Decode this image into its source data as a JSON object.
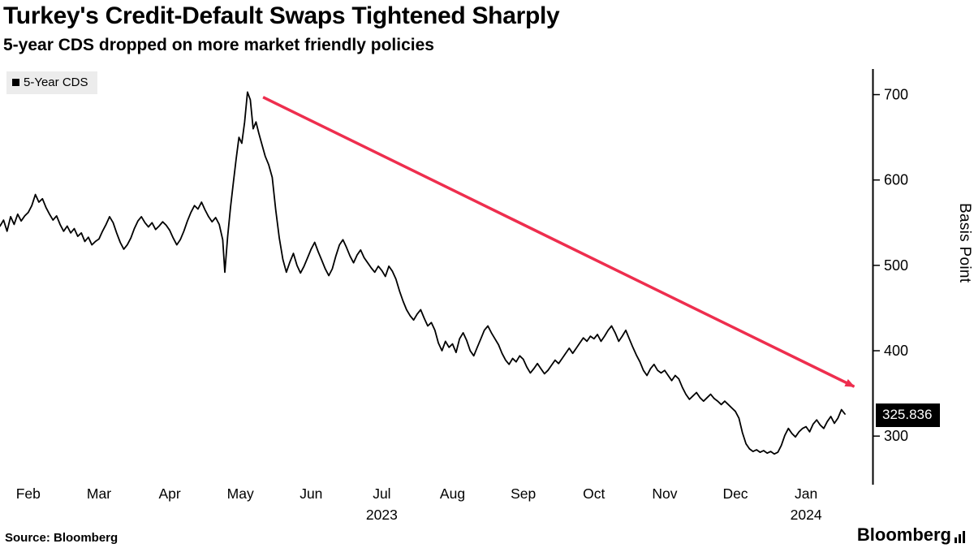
{
  "header": {
    "title": "Turkey's Credit-Default Swaps Tightened Sharply",
    "subtitle": "5-year CDS dropped on more market friendly policies"
  },
  "legend": {
    "label": "5-Year CDS",
    "marker_color": "#000000"
  },
  "chart_data": {
    "type": "line",
    "title": "Turkey's Credit-Default Swaps Tightened Sharply",
    "subtitle": "5-year CDS dropped on more market friendly policies",
    "ylabel": "Basis Point",
    "unit": "basis points",
    "x_unit": "months, 0 = Feb 2023",
    "xlim": [
      -0.4,
      11.94
    ],
    "ylim": [
      245,
      730
    ],
    "grid": false,
    "legend_position": "top-left",
    "y_ticks": [
      300,
      400,
      500,
      600,
      700
    ],
    "x_ticks": [
      {
        "pos": 0,
        "label": "Feb"
      },
      {
        "pos": 1,
        "label": "Mar"
      },
      {
        "pos": 2,
        "label": "Apr"
      },
      {
        "pos": 3,
        "label": "May"
      },
      {
        "pos": 4,
        "label": "Jun"
      },
      {
        "pos": 5,
        "label": "Jul",
        "year": "2023"
      },
      {
        "pos": 6,
        "label": "Aug"
      },
      {
        "pos": 7,
        "label": "Sep"
      },
      {
        "pos": 8,
        "label": "Oct"
      },
      {
        "pos": 9,
        "label": "Nov"
      },
      {
        "pos": 10,
        "label": "Dec"
      },
      {
        "pos": 11,
        "label": "Jan",
        "year": "2024"
      }
    ],
    "last_value": 325.836,
    "last_value_label": "325.836",
    "annotation_arrow": {
      "color": "#ee2e4e",
      "from": [
        3.32,
        697
      ],
      "to": [
        11.68,
        358
      ]
    },
    "series": [
      {
        "name": "5-Year CDS",
        "color": "#000000",
        "points": [
          [
            -0.4,
            546
          ],
          [
            -0.35,
            553
          ],
          [
            -0.3,
            540
          ],
          [
            -0.25,
            557
          ],
          [
            -0.2,
            548
          ],
          [
            -0.15,
            560
          ],
          [
            -0.1,
            552
          ],
          [
            -0.05,
            558
          ],
          [
            0.0,
            562
          ],
          [
            0.05,
            570
          ],
          [
            0.1,
            583
          ],
          [
            0.15,
            574
          ],
          [
            0.2,
            578
          ],
          [
            0.25,
            568
          ],
          [
            0.3,
            560
          ],
          [
            0.35,
            553
          ],
          [
            0.4,
            558
          ],
          [
            0.45,
            548
          ],
          [
            0.5,
            540
          ],
          [
            0.55,
            546
          ],
          [
            0.6,
            538
          ],
          [
            0.65,
            543
          ],
          [
            0.7,
            534
          ],
          [
            0.75,
            538
          ],
          [
            0.8,
            528
          ],
          [
            0.85,
            533
          ],
          [
            0.9,
            524
          ],
          [
            0.95,
            528
          ],
          [
            1.0,
            531
          ],
          [
            1.05,
            540
          ],
          [
            1.1,
            548
          ],
          [
            1.15,
            557
          ],
          [
            1.2,
            550
          ],
          [
            1.25,
            538
          ],
          [
            1.3,
            527
          ],
          [
            1.35,
            519
          ],
          [
            1.4,
            524
          ],
          [
            1.45,
            532
          ],
          [
            1.5,
            543
          ],
          [
            1.55,
            552
          ],
          [
            1.6,
            557
          ],
          [
            1.65,
            550
          ],
          [
            1.7,
            545
          ],
          [
            1.75,
            550
          ],
          [
            1.8,
            542
          ],
          [
            1.85,
            546
          ],
          [
            1.9,
            551
          ],
          [
            1.95,
            547
          ],
          [
            2.0,
            541
          ],
          [
            2.05,
            532
          ],
          [
            2.1,
            524
          ],
          [
            2.15,
            530
          ],
          [
            2.2,
            540
          ],
          [
            2.25,
            552
          ],
          [
            2.3,
            562
          ],
          [
            2.35,
            570
          ],
          [
            2.4,
            566
          ],
          [
            2.45,
            574
          ],
          [
            2.5,
            565
          ],
          [
            2.55,
            557
          ],
          [
            2.6,
            551
          ],
          [
            2.65,
            556
          ],
          [
            2.7,
            548
          ],
          [
            2.75,
            530
          ],
          [
            2.78,
            492
          ],
          [
            2.82,
            534
          ],
          [
            2.86,
            568
          ],
          [
            2.9,
            597
          ],
          [
            2.94,
            625
          ],
          [
            2.98,
            650
          ],
          [
            3.02,
            643
          ],
          [
            3.06,
            668
          ],
          [
            3.1,
            703
          ],
          [
            3.14,
            694
          ],
          [
            3.18,
            660
          ],
          [
            3.22,
            668
          ],
          [
            3.26,
            655
          ],
          [
            3.3,
            643
          ],
          [
            3.35,
            628
          ],
          [
            3.4,
            618
          ],
          [
            3.45,
            603
          ],
          [
            3.5,
            565
          ],
          [
            3.55,
            532
          ],
          [
            3.6,
            507
          ],
          [
            3.65,
            492
          ],
          [
            3.7,
            504
          ],
          [
            3.75,
            514
          ],
          [
            3.8,
            500
          ],
          [
            3.85,
            491
          ],
          [
            3.9,
            499
          ],
          [
            3.95,
            509
          ],
          [
            4.0,
            519
          ],
          [
            4.05,
            527
          ],
          [
            4.1,
            516
          ],
          [
            4.15,
            506
          ],
          [
            4.2,
            496
          ],
          [
            4.25,
            488
          ],
          [
            4.3,
            496
          ],
          [
            4.35,
            511
          ],
          [
            4.4,
            524
          ],
          [
            4.45,
            530
          ],
          [
            4.5,
            521
          ],
          [
            4.55,
            511
          ],
          [
            4.6,
            503
          ],
          [
            4.65,
            512
          ],
          [
            4.7,
            518
          ],
          [
            4.75,
            509
          ],
          [
            4.8,
            503
          ],
          [
            4.85,
            497
          ],
          [
            4.9,
            492
          ],
          [
            4.95,
            499
          ],
          [
            5.0,
            494
          ],
          [
            5.05,
            487
          ],
          [
            5.1,
            499
          ],
          [
            5.15,
            493
          ],
          [
            5.2,
            484
          ],
          [
            5.25,
            470
          ],
          [
            5.3,
            458
          ],
          [
            5.35,
            448
          ],
          [
            5.4,
            441
          ],
          [
            5.45,
            436
          ],
          [
            5.5,
            443
          ],
          [
            5.55,
            448
          ],
          [
            5.6,
            438
          ],
          [
            5.65,
            429
          ],
          [
            5.7,
            433
          ],
          [
            5.75,
            424
          ],
          [
            5.8,
            409
          ],
          [
            5.85,
            400
          ],
          [
            5.9,
            411
          ],
          [
            5.95,
            404
          ],
          [
            6.0,
            408
          ],
          [
            6.05,
            398
          ],
          [
            6.1,
            414
          ],
          [
            6.15,
            421
          ],
          [
            6.2,
            412
          ],
          [
            6.25,
            400
          ],
          [
            6.3,
            394
          ],
          [
            6.35,
            404
          ],
          [
            6.4,
            414
          ],
          [
            6.45,
            424
          ],
          [
            6.5,
            429
          ],
          [
            6.55,
            421
          ],
          [
            6.6,
            414
          ],
          [
            6.65,
            407
          ],
          [
            6.7,
            397
          ],
          [
            6.75,
            389
          ],
          [
            6.8,
            384
          ],
          [
            6.85,
            391
          ],
          [
            6.9,
            387
          ],
          [
            6.95,
            394
          ],
          [
            7.0,
            390
          ],
          [
            7.05,
            381
          ],
          [
            7.1,
            374
          ],
          [
            7.15,
            379
          ],
          [
            7.2,
            385
          ],
          [
            7.25,
            379
          ],
          [
            7.3,
            373
          ],
          [
            7.35,
            377
          ],
          [
            7.4,
            383
          ],
          [
            7.45,
            389
          ],
          [
            7.5,
            385
          ],
          [
            7.55,
            391
          ],
          [
            7.6,
            397
          ],
          [
            7.65,
            403
          ],
          [
            7.7,
            397
          ],
          [
            7.75,
            403
          ],
          [
            7.8,
            409
          ],
          [
            7.85,
            415
          ],
          [
            7.9,
            411
          ],
          [
            7.95,
            417
          ],
          [
            8.0,
            414
          ],
          [
            8.05,
            419
          ],
          [
            8.1,
            411
          ],
          [
            8.15,
            417
          ],
          [
            8.2,
            424
          ],
          [
            8.25,
            429
          ],
          [
            8.3,
            421
          ],
          [
            8.35,
            411
          ],
          [
            8.4,
            417
          ],
          [
            8.45,
            424
          ],
          [
            8.5,
            414
          ],
          [
            8.55,
            404
          ],
          [
            8.6,
            395
          ],
          [
            8.65,
            387
          ],
          [
            8.7,
            377
          ],
          [
            8.75,
            371
          ],
          [
            8.8,
            379
          ],
          [
            8.85,
            384
          ],
          [
            8.9,
            377
          ],
          [
            8.95,
            374
          ],
          [
            9.0,
            377
          ],
          [
            9.05,
            371
          ],
          [
            9.1,
            365
          ],
          [
            9.15,
            371
          ],
          [
            9.2,
            367
          ],
          [
            9.25,
            357
          ],
          [
            9.3,
            349
          ],
          [
            9.35,
            343
          ],
          [
            9.4,
            347
          ],
          [
            9.45,
            351
          ],
          [
            9.5,
            345
          ],
          [
            9.55,
            341
          ],
          [
            9.6,
            345
          ],
          [
            9.65,
            349
          ],
          [
            9.7,
            344
          ],
          [
            9.75,
            341
          ],
          [
            9.8,
            337
          ],
          [
            9.85,
            341
          ],
          [
            9.9,
            337
          ],
          [
            9.95,
            333
          ],
          [
            10.0,
            329
          ],
          [
            10.05,
            321
          ],
          [
            10.1,
            304
          ],
          [
            10.15,
            291
          ],
          [
            10.2,
            285
          ],
          [
            10.25,
            282
          ],
          [
            10.3,
            284
          ],
          [
            10.35,
            281
          ],
          [
            10.4,
            283
          ],
          [
            10.45,
            280
          ],
          [
            10.5,
            282
          ],
          [
            10.55,
            279
          ],
          [
            10.6,
            281
          ],
          [
            10.65,
            289
          ],
          [
            10.7,
            301
          ],
          [
            10.75,
            309
          ],
          [
            10.8,
            303
          ],
          [
            10.85,
            299
          ],
          [
            10.9,
            305
          ],
          [
            10.95,
            309
          ],
          [
            11.0,
            311
          ],
          [
            11.05,
            305
          ],
          [
            11.1,
            314
          ],
          [
            11.15,
            319
          ],
          [
            11.2,
            313
          ],
          [
            11.25,
            309
          ],
          [
            11.3,
            317
          ],
          [
            11.35,
            323
          ],
          [
            11.4,
            315
          ],
          [
            11.45,
            321
          ],
          [
            11.5,
            331
          ],
          [
            11.55,
            325.836
          ]
        ]
      }
    ]
  },
  "footer": {
    "source": "Source: Bloomberg",
    "logo_text": "Bloomberg"
  },
  "colors": {
    "line": "#000000",
    "arrow": "#ee2e4e",
    "axis": "#000000",
    "legend_bg": "#ececec",
    "value_label_bg": "#000000",
    "value_label_text": "#ffffff"
  }
}
